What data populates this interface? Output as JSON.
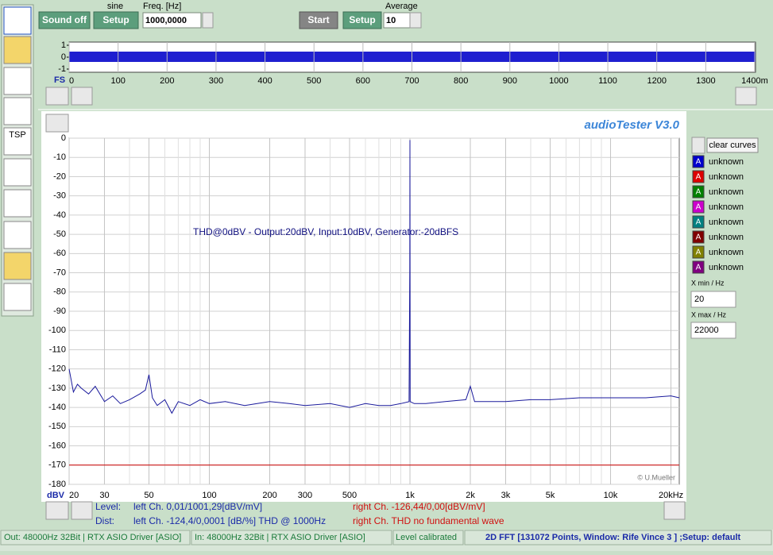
{
  "toolbar": {
    "sound_off": "Sound off",
    "sine_label": "sine",
    "setup_generator": "Setup",
    "freq_label": "Freq. [Hz]",
    "freq_value": "1000,0000",
    "start": "Start",
    "setup_input": "Setup",
    "average_label": "Average",
    "average_value": "10"
  },
  "sidebar": {
    "tsp": "TSP"
  },
  "scope": {
    "ylim": [
      -1,
      1
    ],
    "yticks": [
      1,
      0,
      -1
    ],
    "xlabel": "FS",
    "xlim": [
      0,
      1400
    ],
    "xticks": [
      0,
      100,
      200,
      300,
      400,
      500,
      600,
      700,
      800,
      900,
      1000,
      1100,
      1200,
      1300,
      {
        "value": 1400,
        "label": "1400m"
      }
    ]
  },
  "fft": {
    "title": "audioTester  V3.0",
    "annotation": "THD@0dBV - Output:20dBV, Input:10dBV, Generator:-20dBFS",
    "y_unit": "dBV",
    "copyright": "© U.Mueller",
    "xlog": true,
    "xlim": [
      20,
      22000
    ],
    "ylim": [
      -180,
      0
    ],
    "yticks": [
      0,
      -10,
      -20,
      -30,
      -40,
      -50,
      -60,
      -70,
      -80,
      -90,
      -100,
      -110,
      -120,
      -130,
      -140,
      -150,
      -160,
      -170,
      -180
    ],
    "xticks": [
      20,
      30,
      50,
      100,
      200,
      300,
      500,
      {
        "value": 1000,
        "label": "1k"
      },
      {
        "value": 2000,
        "label": "2k"
      },
      {
        "value": 3000,
        "label": "3k"
      },
      {
        "value": 5000,
        "label": "5k"
      },
      {
        "value": 10000,
        "label": "10k"
      },
      {
        "value": 20000,
        "label": "20kHz"
      }
    ],
    "xgrid": [
      40,
      60,
      70,
      80,
      90,
      400,
      600,
      700,
      800,
      900,
      4000,
      6000,
      7000,
      8000,
      9000
    ],
    "series": [
      {
        "color": "#1a1a9c",
        "x": [
          20,
          21,
          22,
          23,
          25,
          27,
          30,
          33,
          36,
          40,
          45,
          48,
          50,
          52,
          55,
          60,
          65,
          70,
          80,
          90,
          100,
          120,
          150,
          200,
          250,
          300,
          400,
          500,
          600,
          700,
          800,
          900,
          990,
          998,
          1000,
          1003,
          1050,
          1200,
          1500,
          1900,
          2000,
          2100,
          2500,
          3000,
          4000,
          5000,
          7000,
          10000,
          15000,
          20000,
          22000
        ],
        "values": [
          -120,
          -132,
          -128,
          -130,
          -133,
          -129,
          -137,
          -134,
          -138,
          -136,
          -133,
          -131,
          -123,
          -135,
          -139,
          -136,
          -143,
          -137,
          -139,
          -136,
          -138,
          -137,
          -139,
          -137,
          -138,
          -139,
          -138,
          -140,
          -138,
          -139,
          -139,
          -138,
          -137,
          -68,
          -1,
          -137,
          -138,
          -138,
          -137,
          -136,
          -129,
          -137,
          -137,
          -137,
          -136,
          -136,
          -135,
          -135,
          -135,
          -134,
          -135
        ]
      },
      {
        "color": "#cc0000",
        "x": [
          20,
          22000
        ],
        "values": [
          -170,
          -170
        ]
      }
    ]
  },
  "legend": {
    "clear": "clear curves",
    "icon": "A",
    "entries": [
      {
        "label": "unknown",
        "color": "#0000cc"
      },
      {
        "label": "unknown",
        "color": "#dd0000"
      },
      {
        "label": "unknown",
        "color": "#008000"
      },
      {
        "label": "unknown",
        "color": "#cc00cc"
      },
      {
        "label": "unknown",
        "color": "#008080"
      },
      {
        "label": "unknown",
        "color": "#800000"
      },
      {
        "label": "unknown",
        "color": "#808000"
      },
      {
        "label": "unknown",
        "color": "#800080"
      }
    ],
    "xmin_label": "X min / Hz",
    "xmin_value": "20",
    "xmax_label": "X max / Hz",
    "xmax_value": "22000"
  },
  "readout": {
    "level": "Level:",
    "level_left": "left Ch. 0,01/1001,29[dBV/mV]",
    "level_right": "right Ch. -126,44/0,00[dBV/mV]",
    "dist": "Dist:",
    "dist_left": "left Ch. -124,4/0,0001 [dB/%] THD @ 1000Hz",
    "dist_right": "right Ch. THD no fundamental wave"
  },
  "status": {
    "out": "Out: 48000Hz 32Bit  | RTX ASIO Driver [ASIO]",
    "in": "In: 48000Hz 32Bit  | RTX ASIO Driver [ASIO]",
    "level": "Level calibrated",
    "fft": "2D FFT [131072 Points, Window: Rife Vince 3 ] ;Setup:  default"
  }
}
